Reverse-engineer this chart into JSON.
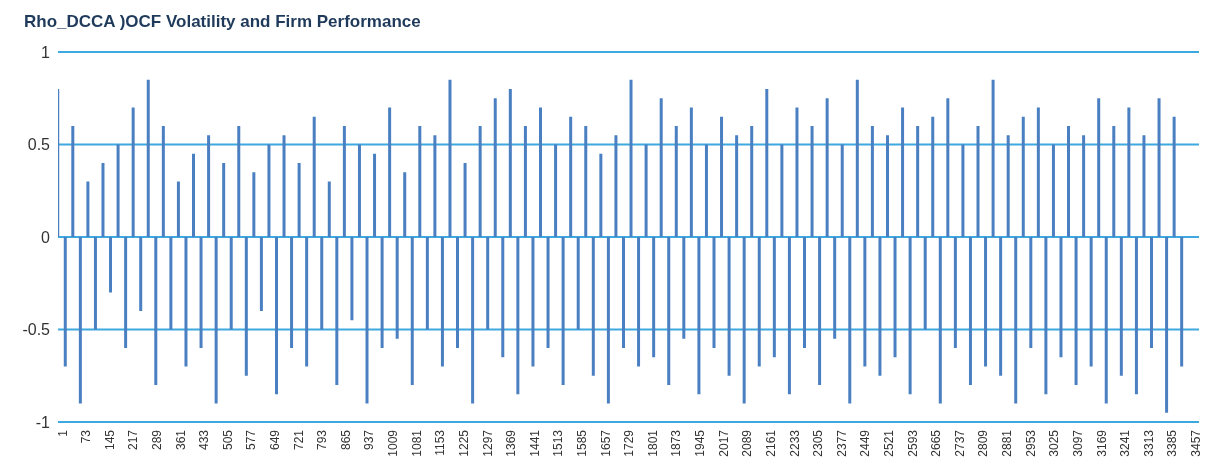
{
  "chart_data": {
    "type": "bar",
    "title": "Rho_DCCA )OCF Volatility and Firm Performance",
    "x": [
      1,
      24,
      47,
      70,
      93,
      116,
      139,
      162,
      185,
      208,
      231,
      254,
      277,
      300,
      323,
      346,
      369,
      392,
      415,
      438,
      461,
      484,
      507,
      530,
      553,
      576,
      599,
      622,
      645,
      668,
      691,
      714,
      737,
      760,
      783,
      806,
      829,
      852,
      875,
      898,
      921,
      944,
      967,
      990,
      1013,
      1036,
      1059,
      1082,
      1105,
      1128,
      1151,
      1174,
      1197,
      1220,
      1243,
      1266,
      1289,
      1312,
      1335,
      1358,
      1381,
      1404,
      1427,
      1450,
      1473,
      1496,
      1519,
      1542,
      1565,
      1588,
      1611,
      1634,
      1657,
      1680,
      1703,
      1726,
      1749,
      1772,
      1795,
      1818,
      1841,
      1864,
      1887,
      1910,
      1933,
      1956,
      1979,
      2002,
      2025,
      2048,
      2071,
      2094,
      2117,
      2140,
      2163,
      2186,
      2209,
      2232,
      2255,
      2278,
      2301,
      2324,
      2347,
      2370,
      2393,
      2416,
      2439,
      2462,
      2485,
      2508,
      2531,
      2554,
      2577,
      2600,
      2623,
      2646,
      2669,
      2692,
      2715,
      2738,
      2761,
      2784,
      2807,
      2830,
      2853,
      2876,
      2899,
      2922,
      2945,
      2968,
      2991,
      3014,
      3037,
      3060,
      3083,
      3106,
      3129,
      3152,
      3175,
      3198,
      3221,
      3244,
      3267,
      3290,
      3313,
      3336,
      3359,
      3382,
      3405,
      3428
    ],
    "values": [
      0.8,
      -0.7,
      0.6,
      -0.9,
      0.3,
      -0.5,
      0.4,
      -0.3,
      0.5,
      -0.6,
      0.7,
      -0.4,
      0.85,
      -0.8,
      0.6,
      -0.5,
      0.3,
      -0.7,
      0.45,
      -0.6,
      0.55,
      -0.9,
      0.4,
      -0.5,
      0.6,
      -0.75,
      0.35,
      -0.4,
      0.5,
      -0.85,
      0.55,
      -0.6,
      0.4,
      -0.7,
      0.65,
      -0.5,
      0.3,
      -0.8,
      0.6,
      -0.45,
      0.5,
      -0.9,
      0.45,
      -0.6,
      0.7,
      -0.55,
      0.35,
      -0.8,
      0.6,
      -0.5,
      0.55,
      -0.7,
      0.85,
      -0.6,
      0.4,
      -0.9,
      0.6,
      -0.5,
      0.75,
      -0.65,
      0.8,
      -0.85,
      0.6,
      -0.7,
      0.7,
      -0.6,
      0.5,
      -0.8,
      0.65,
      -0.5,
      0.6,
      -0.75,
      0.45,
      -0.9,
      0.55,
      -0.6,
      0.85,
      -0.7,
      0.5,
      -0.65,
      0.75,
      -0.8,
      0.6,
      -0.55,
      0.7,
      -0.85,
      0.5,
      -0.6,
      0.65,
      -0.75,
      0.55,
      -0.9,
      0.6,
      -0.7,
      0.8,
      -0.65,
      0.5,
      -0.85,
      0.7,
      -0.6,
      0.6,
      -0.8,
      0.75,
      -0.55,
      0.5,
      -0.9,
      0.85,
      -0.7,
      0.6,
      -0.75,
      0.55,
      -0.65,
      0.7,
      -0.85,
      0.6,
      -0.5,
      0.65,
      -0.9,
      0.75,
      -0.6,
      0.5,
      -0.8,
      0.6,
      -0.7,
      0.85,
      -0.75,
      0.55,
      -0.9,
      0.65,
      -0.6,
      0.7,
      -0.85,
      0.5,
      -0.65,
      0.6,
      -0.8,
      0.55,
      -0.7,
      0.75,
      -0.9,
      0.6,
      -0.75,
      0.7,
      -0.85,
      0.55,
      -0.6,
      0.75,
      -0.95,
      0.65,
      -0.7
    ],
    "color": "#4a7fc1",
    "xlim": [
      1,
      3480
    ],
    "xticks": [
      1,
      73,
      145,
      217,
      289,
      361,
      433,
      505,
      577,
      649,
      721,
      793,
      865,
      937,
      1009,
      1081,
      1153,
      1225,
      1297,
      1369,
      1441,
      1513,
      1585,
      1657,
      1729,
      1801,
      1873,
      1945,
      2017,
      2089,
      2161,
      2233,
      2305,
      2377,
      2449,
      2521,
      2593,
      2665,
      2737,
      2809,
      2881,
      2953,
      3025,
      3097,
      3169,
      3241,
      3313,
      3385,
      3457
    ],
    "ylim": [
      -1,
      1
    ],
    "yticks": [
      -1,
      -0.5,
      0,
      0.5,
      1
    ],
    "grid": "y"
  }
}
